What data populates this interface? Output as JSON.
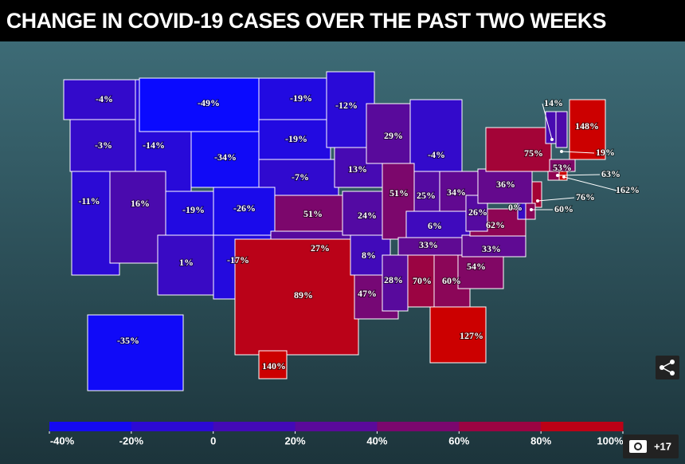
{
  "header": {
    "title": "CHANGE IN COVID-19 CASES OVER THE PAST TWO WEEKS"
  },
  "map": {
    "states": [
      {
        "value": -4,
        "label": "-4%"
      },
      {
        "value": -3,
        "label": "-3%"
      },
      {
        "value": -14,
        "label": "-14%"
      },
      {
        "value": -49,
        "label": "-49%"
      },
      {
        "value": -34,
        "label": "-34%"
      },
      {
        "value": -19,
        "label": "-19%"
      },
      {
        "value": -19,
        "label": "-19%"
      },
      {
        "value": -7,
        "label": "-7%"
      },
      {
        "value": -12,
        "label": "-12%"
      },
      {
        "value": 13,
        "label": "13%"
      },
      {
        "value": 29,
        "label": "29%"
      },
      {
        "value": -4,
        "label": "-4%"
      },
      {
        "value": -11,
        "label": "-11%"
      },
      {
        "value": 16,
        "label": "16%"
      },
      {
        "value": -19,
        "label": "-19%"
      },
      {
        "value": -26,
        "label": "-26%"
      },
      {
        "value": 1,
        "label": "1%"
      },
      {
        "value": -17,
        "label": "-17%"
      },
      {
        "value": 51,
        "label": "51%"
      },
      {
        "value": 27,
        "label": "27%"
      },
      {
        "value": 89,
        "label": "89%"
      },
      {
        "value": 24,
        "label": "24%"
      },
      {
        "value": 8,
        "label": "8%"
      },
      {
        "value": 47,
        "label": "47%"
      },
      {
        "value": 51,
        "label": "51%"
      },
      {
        "value": 25,
        "label": "25%"
      },
      {
        "value": 34,
        "label": "34%"
      },
      {
        "value": 6,
        "label": "6%"
      },
      {
        "value": 33,
        "label": "33%"
      },
      {
        "value": 28,
        "label": "28%"
      },
      {
        "value": 70,
        "label": "70%"
      },
      {
        "value": 60,
        "label": "60%"
      },
      {
        "value": 127,
        "label": "127%"
      },
      {
        "value": 54,
        "label": "54%"
      },
      {
        "value": 33,
        "label": "33%"
      },
      {
        "value": 62,
        "label": "62%"
      },
      {
        "value": 26,
        "label": "26%"
      },
      {
        "value": 36,
        "label": "36%"
      },
      {
        "value": 75,
        "label": "75%"
      },
      {
        "value": 0,
        "label": "0%"
      },
      {
        "value": 14,
        "label": "14%"
      },
      {
        "value": 148,
        "label": "148%"
      },
      {
        "value": 19,
        "label": "19%"
      },
      {
        "value": 53,
        "label": "53%"
      },
      {
        "value": 63,
        "label": "63%"
      },
      {
        "value": 162,
        "label": "162%"
      },
      {
        "value": 76,
        "label": "76%"
      },
      {
        "value": 60,
        "label": "60%"
      },
      {
        "value": -35,
        "label": "-35%"
      },
      {
        "value": 140,
        "label": "140%"
      }
    ],
    "legend": {
      "ticks": [
        {
          "value": -40,
          "label": "-40%"
        },
        {
          "value": -20,
          "label": "-20%"
        },
        0,
        {
          "value": 20,
          "label": "20%"
        },
        {
          "value": 40,
          "label": "40%"
        },
        {
          "value": 60,
          "label": "60%"
        },
        {
          "value": 80,
          "label": "80%"
        },
        {
          "value": 100,
          "label": "100%"
        }
      ],
      "colors": [
        "#0a0aff",
        "#5a0a9a",
        "#cc0000"
      ]
    }
  },
  "gallery": {
    "count": "+17"
  }
}
